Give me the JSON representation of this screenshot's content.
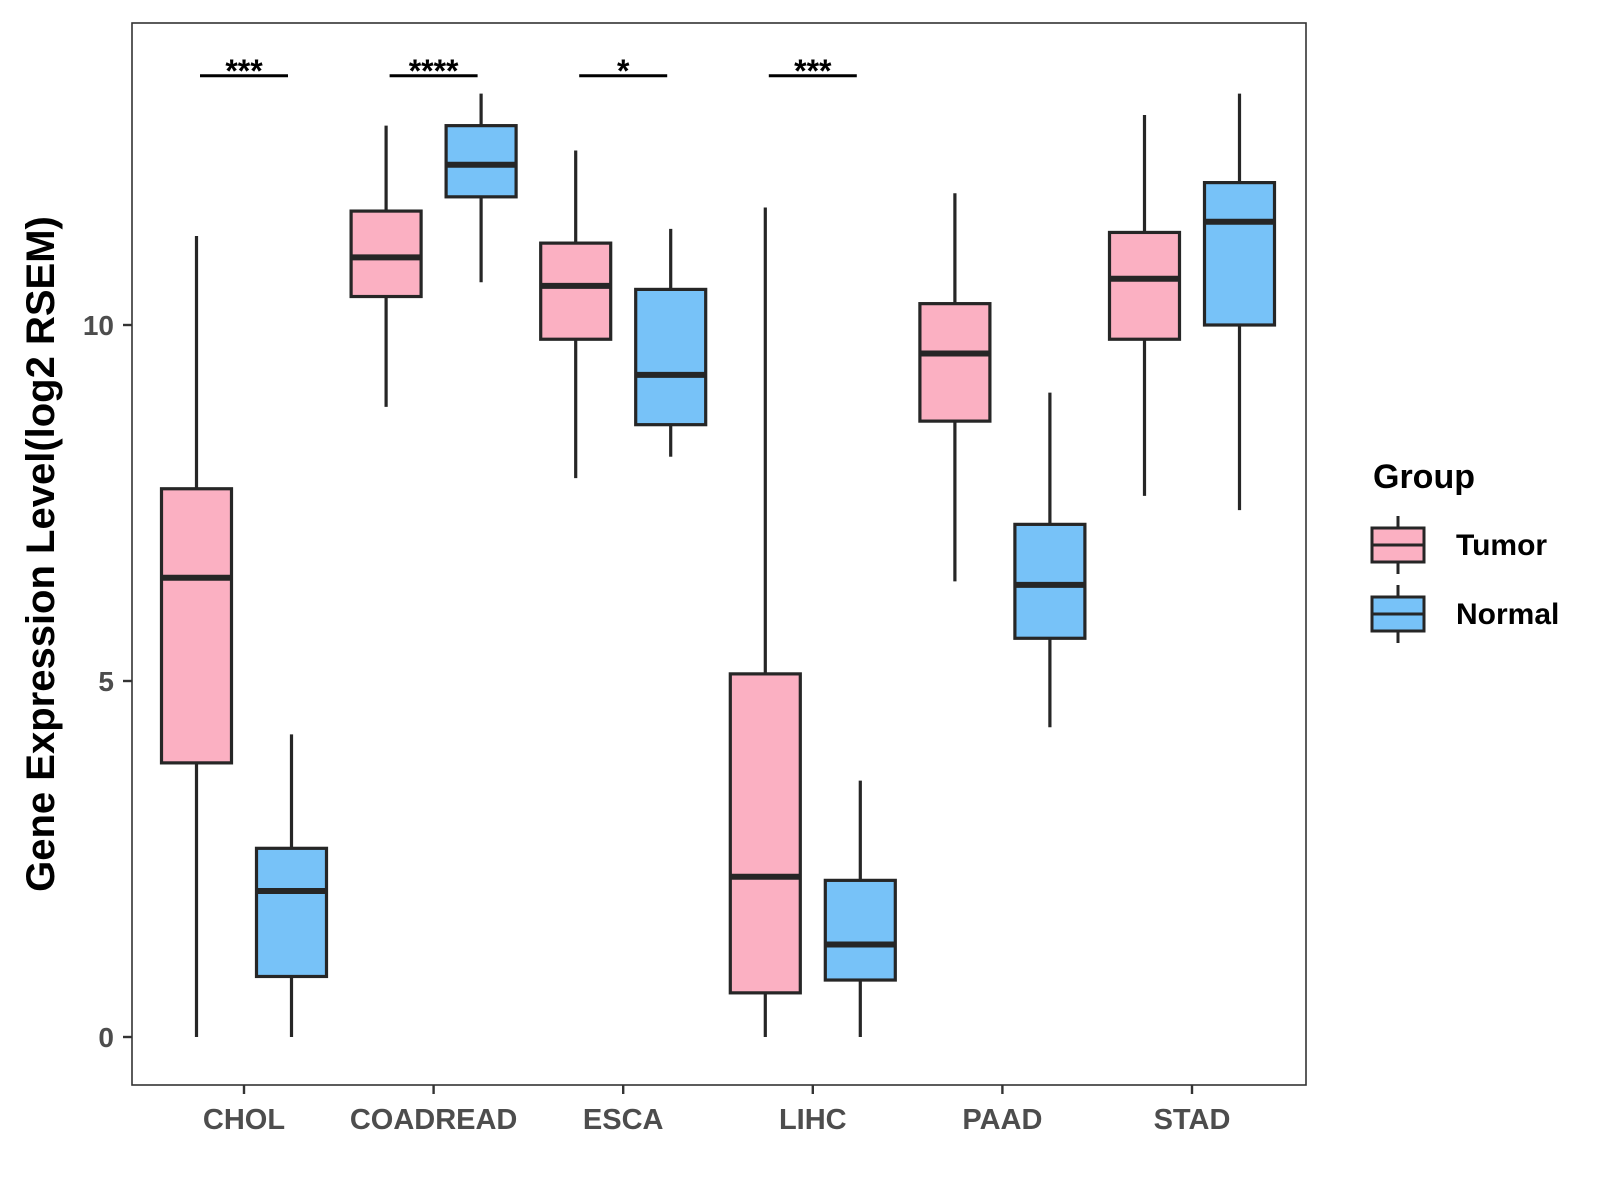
{
  "chart_data": {
    "type": "boxplot",
    "title": "",
    "xlabel": "",
    "ylabel": "Gene Expression Level(log2 RSEM)",
    "ylim": [
      -0.65,
      14.25
    ],
    "yticks": [
      0,
      5,
      10
    ],
    "categories": [
      "CHOL",
      "COADREAD",
      "ESCA",
      "LIHC",
      "PAAD",
      "STAD"
    ],
    "legend": {
      "title": "Group",
      "placement": "right",
      "items": [
        {
          "name": "Tumor",
          "color": "#FBB0C2"
        },
        {
          "name": "Normal",
          "color": "#77C2F8"
        }
      ]
    },
    "series": [
      {
        "name": "Tumor",
        "color": "#FBB0C2",
        "boxes": [
          {
            "category": "CHOL",
            "min": 0.0,
            "q1": 3.85,
            "median": 6.45,
            "q3": 7.7,
            "max": 11.25
          },
          {
            "category": "COADREAD",
            "min": 8.85,
            "q1": 10.4,
            "median": 10.95,
            "q3": 11.6,
            "max": 12.8
          },
          {
            "category": "ESCA",
            "min": 7.85,
            "q1": 9.8,
            "median": 10.55,
            "q3": 11.15,
            "max": 12.45
          },
          {
            "category": "LIHC",
            "min": 0.0,
            "q1": 0.62,
            "median": 2.25,
            "q3": 5.1,
            "max": 11.65
          },
          {
            "category": "PAAD",
            "min": 6.4,
            "q1": 8.65,
            "median": 9.6,
            "q3": 10.3,
            "max": 11.85
          },
          {
            "category": "STAD",
            "min": 7.6,
            "q1": 9.8,
            "median": 10.65,
            "q3": 11.3,
            "max": 12.95
          }
        ]
      },
      {
        "name": "Normal",
        "color": "#77C2F8",
        "boxes": [
          {
            "category": "CHOL",
            "min": 0.0,
            "q1": 0.85,
            "median": 2.05,
            "q3": 2.65,
            "max": 4.25
          },
          {
            "category": "COADREAD",
            "min": 10.6,
            "q1": 11.8,
            "median": 12.25,
            "q3": 12.8,
            "max": 13.25
          },
          {
            "category": "ESCA",
            "min": 8.15,
            "q1": 8.6,
            "median": 9.3,
            "q3": 10.5,
            "max": 11.35
          },
          {
            "category": "LIHC",
            "min": 0.0,
            "q1": 0.8,
            "median": 1.3,
            "q3": 2.2,
            "max": 3.6
          },
          {
            "category": "PAAD",
            "min": 4.35,
            "q1": 5.6,
            "median": 6.35,
            "q3": 7.2,
            "max": 9.05
          },
          {
            "category": "STAD",
            "min": 7.4,
            "q1": 10.0,
            "median": 11.45,
            "q3": 12.0,
            "max": 13.25
          }
        ]
      }
    ],
    "annotations": [
      {
        "category": "CHOL",
        "label": "***",
        "y": 13.5
      },
      {
        "category": "COADREAD",
        "label": "****",
        "y": 13.5
      },
      {
        "category": "ESCA",
        "label": "*",
        "y": 13.5
      },
      {
        "category": "LIHC",
        "label": "***",
        "y": 13.5
      }
    ]
  }
}
